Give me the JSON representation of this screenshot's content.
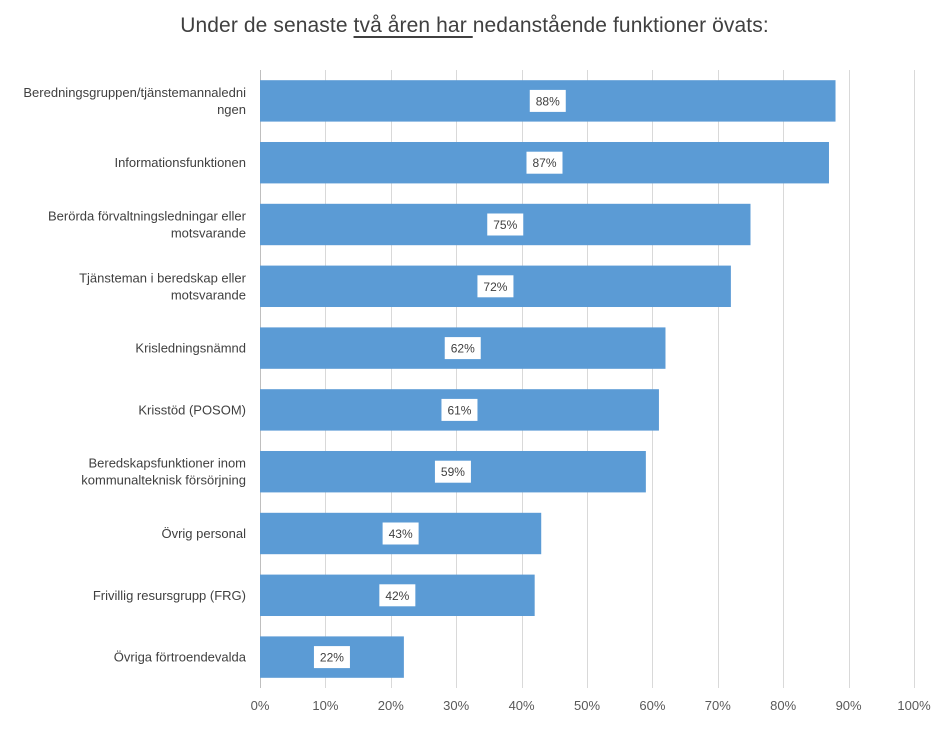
{
  "chart_data": {
    "type": "bar",
    "orientation": "horizontal",
    "title_parts": [
      "Under de senaste ",
      "två åren har ",
      "nedanstående funktioner övats:"
    ],
    "categories": [
      [
        "Beredningsgruppen/tjänstemannaledni",
        "ngen"
      ],
      [
        "Informationsfunktionen"
      ],
      [
        "Berörda förvaltningsledningar eller",
        "motsvarande"
      ],
      [
        "Tjänsteman i beredskap eller",
        "motsvarande"
      ],
      [
        "Krisledningsnämnd"
      ],
      [
        "Krisstöd (POSOM)"
      ],
      [
        "Beredskapsfunktioner inom",
        "kommunalteknisk försörjning"
      ],
      [
        "Övrig personal"
      ],
      [
        "Frivillig resursgrupp (FRG)"
      ],
      [
        "Övriga förtroendevalda"
      ]
    ],
    "values": [
      88,
      87,
      75,
      72,
      62,
      61,
      59,
      43,
      42,
      22
    ],
    "data_labels": [
      "88%",
      "87%",
      "75%",
      "72%",
      "62%",
      "61%",
      "59%",
      "43%",
      "42%",
      "22%"
    ],
    "xlim": [
      0,
      100
    ],
    "x_ticks": [
      "0%",
      "10%",
      "20%",
      "30%",
      "40%",
      "50%",
      "60%",
      "70%",
      "80%",
      "90%",
      "100%"
    ],
    "grid": "vertical",
    "legend": "none",
    "bar_color": "#5b9bd5",
    "grid_color": "#d9d9d9"
  }
}
